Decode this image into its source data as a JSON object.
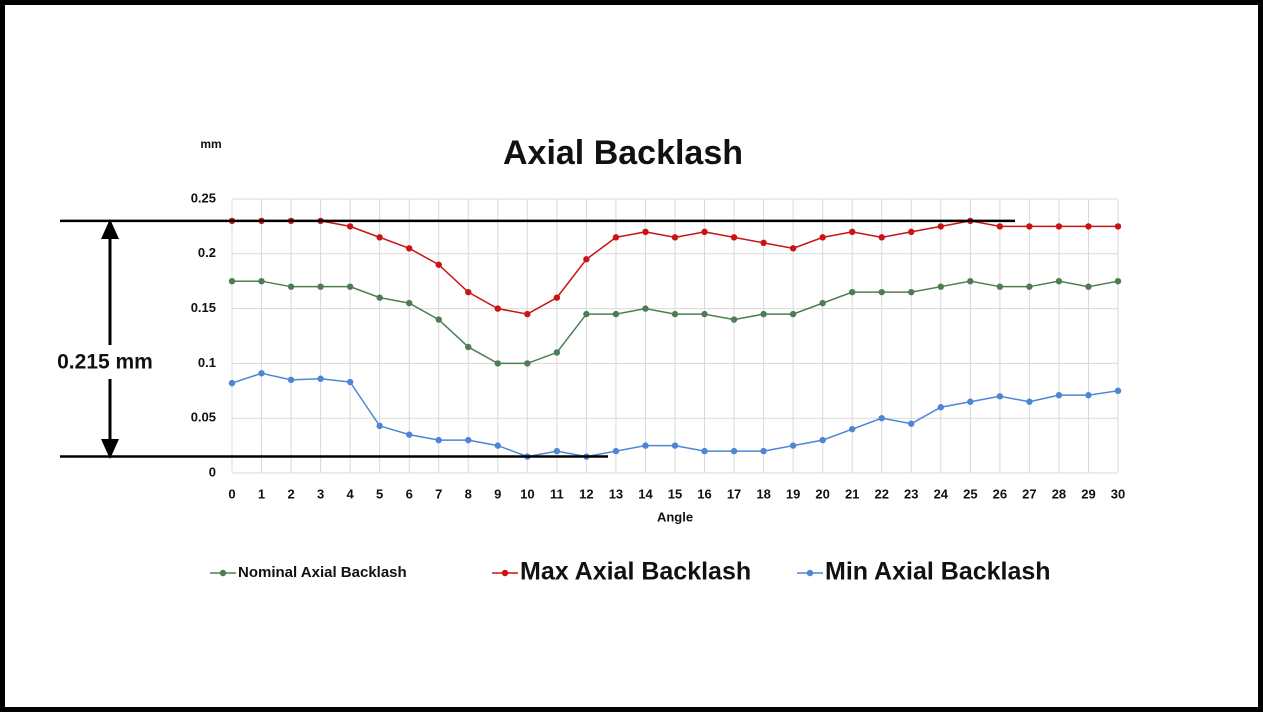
{
  "chart_data": {
    "type": "line",
    "title": "Axial Backlash",
    "y_unit": "mm",
    "xlabel": "Angle",
    "annotation": "0.215 mm",
    "reference_lines": [
      0.23,
      0.015
    ],
    "x": [
      0,
      1,
      2,
      3,
      4,
      5,
      6,
      7,
      8,
      9,
      10,
      11,
      12,
      13,
      14,
      15,
      16,
      17,
      18,
      19,
      20,
      21,
      22,
      23,
      24,
      25,
      26,
      27,
      28,
      29,
      30
    ],
    "series": [
      {
        "name": "Nominal Axial Backlash",
        "color": "#4f7d53",
        "values": [
          0.175,
          0.175,
          0.17,
          0.17,
          0.17,
          0.16,
          0.155,
          0.14,
          0.115,
          0.1,
          0.1,
          0.11,
          0.145,
          0.145,
          0.15,
          0.145,
          0.145,
          0.14,
          0.145,
          0.145,
          0.155,
          0.165,
          0.165,
          0.165,
          0.17,
          0.175,
          0.17,
          0.17,
          0.175,
          0.17,
          0.175
        ]
      },
      {
        "name": "Max Axial Backlash",
        "color": "#c81414",
        "values": [
          0.23,
          0.23,
          0.23,
          0.23,
          0.225,
          0.215,
          0.205,
          0.19,
          0.165,
          0.15,
          0.145,
          0.16,
          0.195,
          0.215,
          0.22,
          0.215,
          0.22,
          0.215,
          0.21,
          0.205,
          0.215,
          0.22,
          0.215,
          0.22,
          0.225,
          0.23,
          0.225,
          0.225,
          0.225,
          0.225,
          0.225
        ]
      },
      {
        "name": "Min Axial Backlash",
        "color": "#4e86d6",
        "values": [
          0.082,
          0.091,
          0.085,
          0.086,
          0.083,
          0.043,
          0.035,
          0.03,
          0.03,
          0.025,
          0.015,
          0.02,
          0.015,
          0.02,
          0.025,
          0.025,
          0.02,
          0.02,
          0.02,
          0.025,
          0.03,
          0.04,
          0.05,
          0.045,
          0.06,
          0.065,
          0.07,
          0.065,
          0.071,
          0.071,
          0.075
        ]
      }
    ],
    "xlim": [
      0,
      30
    ],
    "xticks": [
      0,
      1,
      2,
      3,
      4,
      5,
      6,
      7,
      8,
      9,
      10,
      11,
      12,
      13,
      14,
      15,
      16,
      17,
      18,
      19,
      20,
      21,
      22,
      23,
      24,
      25,
      26,
      27,
      28,
      29,
      30
    ],
    "ylim": [
      0,
      0.25
    ],
    "yticks": [
      0,
      0.05,
      0.1,
      0.15,
      0.2,
      0.25
    ],
    "grid": true
  }
}
